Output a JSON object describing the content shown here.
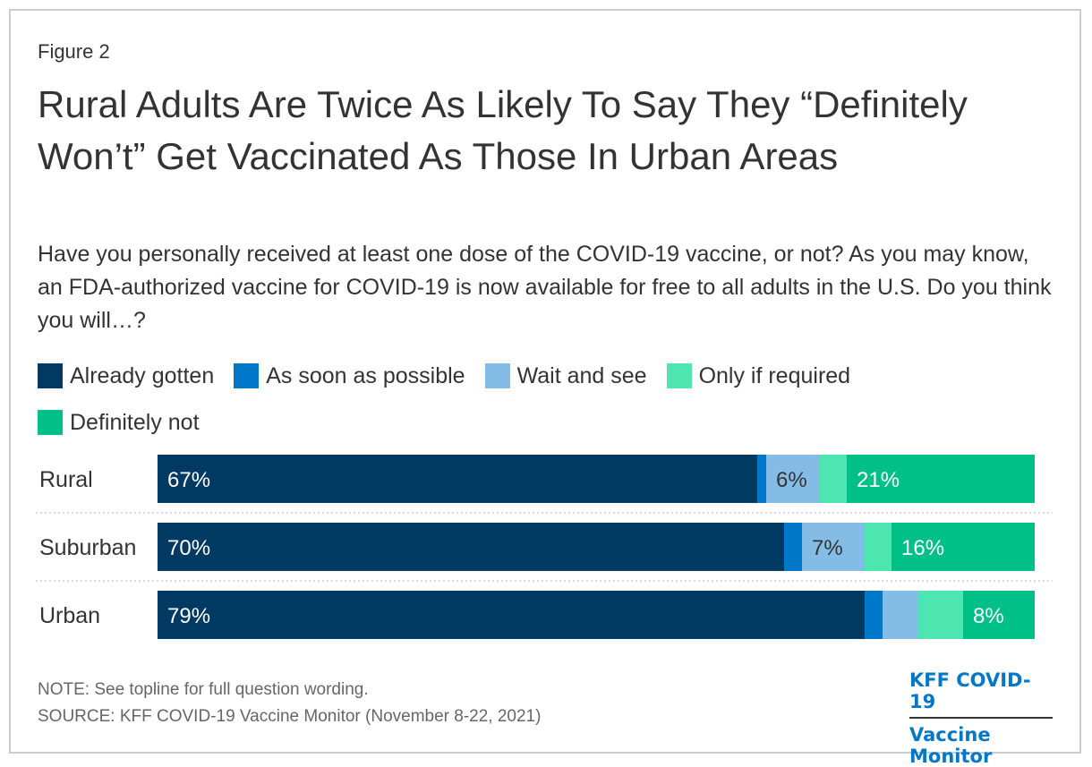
{
  "figure_label": "Figure 2",
  "title": "Rural Adults Are Twice As Likely To Say They “Definitely Won’t” Get Vaccinated As Those In Urban Areas",
  "subtitle": "Have you personally received at least one dose of the COVID-19 vaccine, or not? As you may know, an FDA-authorized vaccine for COVID-19 is now available for free to all adults in the U.S. Do you think you will…?",
  "legend": [
    {
      "label": "Already gotten",
      "color": "#003a63"
    },
    {
      "label": "As soon as possible",
      "color": "#0077c8"
    },
    {
      "label": "Wait and see",
      "color": "#85bce6"
    },
    {
      "label": "Only if required",
      "color": "#4de6b1"
    },
    {
      "label": "Definitely not",
      "color": "#00c088"
    }
  ],
  "chart_data": {
    "type": "bar",
    "orientation": "horizontal",
    "stacked": true,
    "categories": [
      "Rural",
      "Suburban",
      "Urban"
    ],
    "series": [
      {
        "name": "Already gotten",
        "values": [
          67,
          70,
          79
        ],
        "labels": [
          "67%",
          "70%",
          "79%"
        ],
        "color": "#003a63",
        "label_color": "#ffffff"
      },
      {
        "name": "As soon as possible",
        "values": [
          1,
          2,
          2
        ],
        "labels": [
          "",
          "",
          ""
        ],
        "color": "#0077c8",
        "label_color": "#ffffff"
      },
      {
        "name": "Wait and see",
        "values": [
          6,
          7,
          4
        ],
        "labels": [
          "6%",
          "7%",
          ""
        ],
        "color": "#85bce6",
        "label_color": "#333333"
      },
      {
        "name": "Only if required",
        "values": [
          3,
          3,
          5
        ],
        "labels": [
          "",
          "",
          ""
        ],
        "color": "#4de6b1",
        "label_color": "#333333"
      },
      {
        "name": "Definitely not",
        "values": [
          21,
          16,
          8
        ],
        "labels": [
          "21%",
          "16%",
          "8%"
        ],
        "color": "#00c088",
        "label_color": "#ffffff"
      }
    ],
    "xlim": [
      0,
      98
    ],
    "grid": false,
    "legend_position": "top"
  },
  "note": "NOTE: See topline for full question wording.",
  "source": "SOURCE: KFF COVID-19 Vaccine Monitor (November 8-22, 2021)",
  "brand": {
    "line1": "KFF COVID-19",
    "line2": "Vaccine Monitor"
  }
}
